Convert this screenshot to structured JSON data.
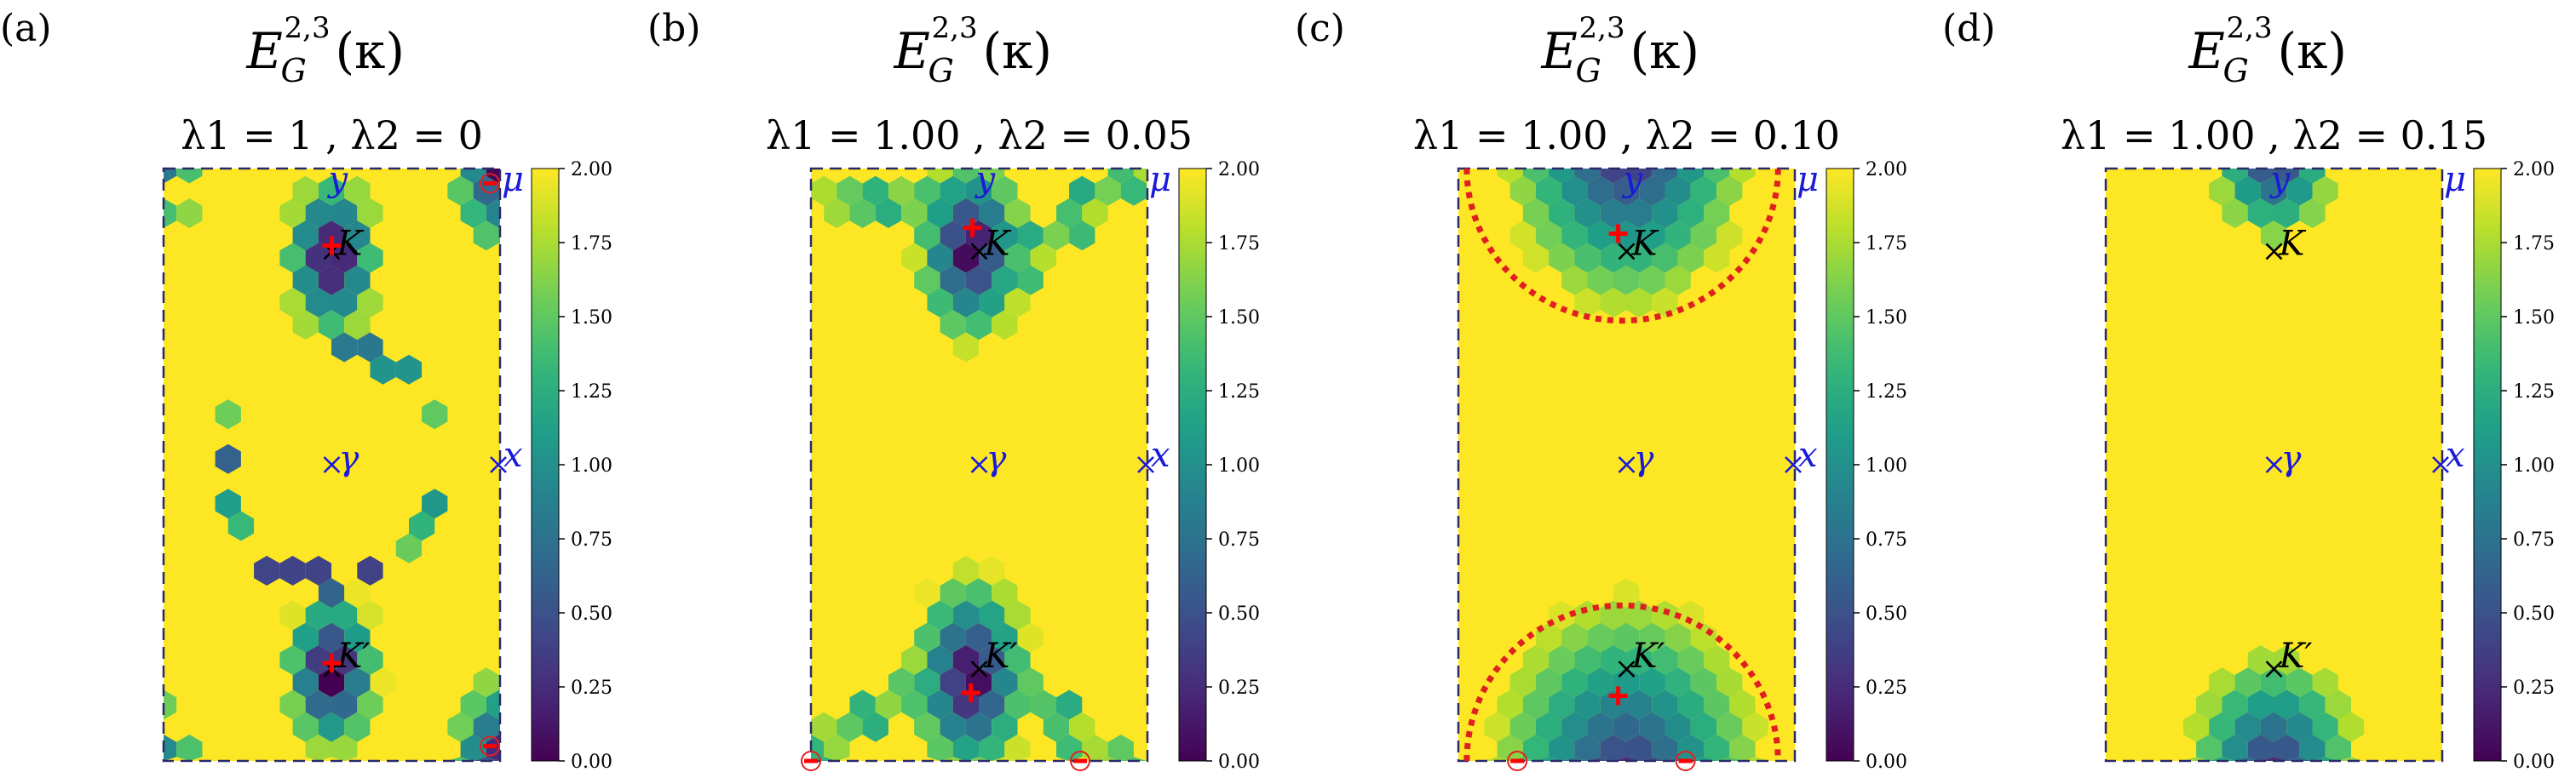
{
  "figure": {
    "colors": {
      "frame": "#2a2a6a",
      "axis_letters": "#1a1ad8",
      "marker_black": "#000000",
      "marker_red": "#ff0000",
      "circle_red": "#e02020",
      "background_field": "#fde725"
    }
  },
  "chart_data": [
    {
      "type": "heatmap",
      "panel_label": "(a)",
      "title": "E_G^{2,3}(κ)",
      "subtitle": "λ1 = 1 ,   λ2 = 0",
      "colorbar": {
        "min": 0.0,
        "max": 2.0,
        "ticks": [
          "0.00",
          "0.25",
          "0.50",
          "0.75",
          "1.00",
          "1.25",
          "1.50",
          "1.75",
          "2.00"
        ],
        "colormap": "viridis"
      },
      "points": {
        "gamma": "γ",
        "x": "x",
        "y": "y",
        "mu": "μ",
        "K": "K",
        "Kp": "K′"
      },
      "gap_features": "low-gap hexagon clusters at K and K′, ring of low-gap cells around γ (radius ≈ 0.3 of width), corner patches at μ",
      "red_markers": [
        "K",
        "K′",
        "μ (top-right corner, circled)",
        "bottom-right corner (circled)"
      ]
    },
    {
      "type": "heatmap",
      "panel_label": "(b)",
      "title": "E_G^{2,3}(κ)",
      "subtitle": "λ1 = 1.00 ,   λ2 = 0.05",
      "colorbar": {
        "min": 0.0,
        "max": 2.0,
        "ticks": [
          "0.00",
          "0.25",
          "0.50",
          "0.75",
          "1.00",
          "1.25",
          "1.50",
          "1.75",
          "2.00"
        ],
        "colormap": "viridis"
      },
      "points": {
        "gamma": "γ",
        "x": "x",
        "y": "y",
        "mu": "μ",
        "K": "K",
        "Kp": "K′"
      },
      "gap_features": "low-gap regions near K and K′ connected to top/bottom edges by thin arms",
      "red_markers": [
        "near K (shifted up-left)",
        "near K′ (shifted down-left)",
        "bottom-left corner (circled)",
        "bottom edge right (circled)"
      ]
    },
    {
      "type": "heatmap",
      "panel_label": "(c)",
      "title": "E_G^{2,3}(κ)",
      "subtitle": "λ1 = 1.00 ,   λ2 = 0.10",
      "colorbar": {
        "min": 0.0,
        "max": 2.0,
        "ticks": [
          "0.00",
          "0.25",
          "0.50",
          "0.75",
          "1.00",
          "1.25",
          "1.50",
          "1.75",
          "2.00"
        ],
        "colormap": "viridis"
      },
      "points": {
        "gamma": "γ",
        "x": "x",
        "y": "y",
        "mu": "μ",
        "K": "K",
        "Kp": "K′"
      },
      "gap_features": "broad low-gap domes at the top and bottom edges, enclosed by red dotted circles",
      "red_markers": [
        "between y and K",
        "below K′",
        "bottom edge left (circled)",
        "bottom edge right (circled)"
      ],
      "annotations": [
        "red dotted semicircle around top region",
        "red dotted semicircle around bottom region"
      ]
    },
    {
      "type": "heatmap",
      "panel_label": "(d)",
      "title": "E_G^{2,3}(κ)",
      "subtitle": "λ1 = 1.00 ,   λ2 = 0.15",
      "colorbar": {
        "min": 0.0,
        "max": 2.0,
        "ticks": [
          "0.00",
          "0.25",
          "0.50",
          "0.75",
          "1.00",
          "1.25",
          "1.50",
          "1.75",
          "2.00"
        ],
        "colormap": "viridis"
      },
      "points": {
        "gamma": "γ",
        "x": "x",
        "y": "y",
        "mu": "μ",
        "K": "K",
        "Kp": "K′"
      },
      "gap_features": "small low-gap patches only at the top and bottom edge centers; gap fully open elsewhere",
      "red_markers": []
    }
  ]
}
